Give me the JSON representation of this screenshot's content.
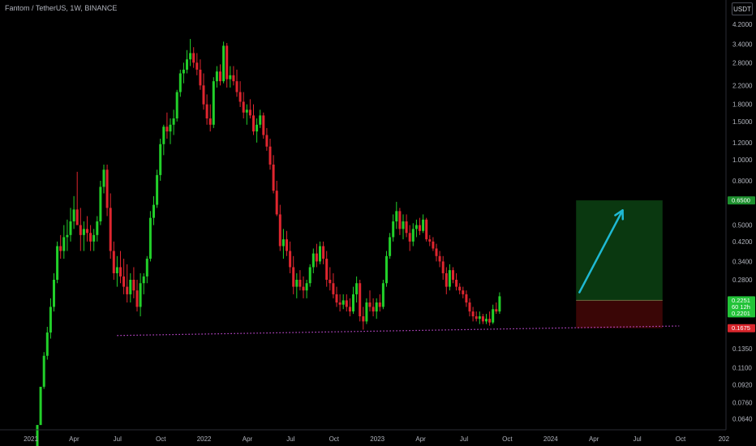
{
  "header": {
    "title": "Fantom / TetherUS, 1W, BINANCE",
    "currency": "USDT"
  },
  "colors": {
    "up": "#22d02a",
    "down": "#e0262f",
    "support": "#c44bd4",
    "arrow": "#1fb9d3",
    "target_zone": "#0a3810",
    "stop_zone": "#3a0606",
    "badge_target": "#1d8f2e",
    "badge_entry": "#22c338",
    "badge_stop": "#d9262c"
  },
  "chart_data": {
    "type": "candlestick",
    "scale": "log",
    "y_axis_ticks": [
      "4.2000",
      "3.4000",
      "2.8000",
      "2.2000",
      "1.8000",
      "1.5000",
      "1.2000",
      "1.0000",
      "0.8000",
      "0.5000",
      "0.4200",
      "0.3400",
      "0.2800",
      "0.1350",
      "0.1100",
      "0.0920",
      "0.0760",
      "0.0640"
    ],
    "x_axis_ticks": [
      "2021",
      "Apr",
      "Jul",
      "Oct",
      "2022",
      "Apr",
      "Jul",
      "Oct",
      "2023",
      "Apr",
      "Jul",
      "Oct",
      "2024",
      "Apr",
      "Jul",
      "Oct",
      "202"
    ],
    "price_badges": [
      {
        "label": "0.6500",
        "price": 0.65,
        "role": "target"
      },
      {
        "lines": [
          "0.2251",
          "60 12h",
          "0.2201"
        ],
        "price": 0.2251,
        "role": "entry"
      },
      {
        "label": "0.1675",
        "price": 0.1675,
        "role": "stop"
      }
    ],
    "position": {
      "entry": 0.2251,
      "target": 0.65,
      "stop": 0.1675,
      "start_week": 162,
      "end_week": 188
    },
    "support_line": {
      "from_week": 24,
      "from_price": 0.155,
      "to_week": 193,
      "to_price": 0.1715
    },
    "arrow": {
      "from_week": 163,
      "from_price": 0.245,
      "to_week": 176,
      "to_price": 0.585
    },
    "candles": [
      [
        0.045,
        0.06,
        0.045,
        0.06
      ],
      [
        0.06,
        0.09,
        0.06,
        0.09
      ],
      [
        0.09,
        0.13,
        0.088,
        0.125
      ],
      [
        0.125,
        0.17,
        0.12,
        0.16
      ],
      [
        0.16,
        0.23,
        0.15,
        0.21
      ],
      [
        0.21,
        0.3,
        0.2,
        0.28
      ],
      [
        0.28,
        0.42,
        0.27,
        0.4
      ],
      [
        0.4,
        0.45,
        0.35,
        0.38
      ],
      [
        0.38,
        0.5,
        0.35,
        0.44
      ],
      [
        0.44,
        0.53,
        0.38,
        0.45
      ],
      [
        0.45,
        0.6,
        0.42,
        0.52
      ],
      [
        0.52,
        0.68,
        0.48,
        0.59
      ],
      [
        0.59,
        0.88,
        0.52,
        0.5
      ],
      [
        0.5,
        0.6,
        0.38,
        0.45
      ],
      [
        0.45,
        0.52,
        0.38,
        0.48
      ],
      [
        0.48,
        0.55,
        0.42,
        0.46
      ],
      [
        0.46,
        0.5,
        0.38,
        0.42
      ],
      [
        0.42,
        0.48,
        0.38,
        0.45
      ],
      [
        0.45,
        0.55,
        0.42,
        0.52
      ],
      [
        0.52,
        0.8,
        0.5,
        0.75
      ],
      [
        0.75,
        0.95,
        0.7,
        0.9
      ],
      [
        0.9,
        0.95,
        0.55,
        0.6
      ],
      [
        0.6,
        0.7,
        0.35,
        0.38
      ],
      [
        0.38,
        0.42,
        0.28,
        0.3
      ],
      [
        0.3,
        0.36,
        0.26,
        0.32
      ],
      [
        0.32,
        0.38,
        0.27,
        0.29
      ],
      [
        0.29,
        0.35,
        0.24,
        0.26
      ],
      [
        0.26,
        0.33,
        0.22,
        0.24
      ],
      [
        0.24,
        0.3,
        0.22,
        0.28
      ],
      [
        0.28,
        0.32,
        0.23,
        0.25
      ],
      [
        0.25,
        0.28,
        0.2,
        0.21
      ],
      [
        0.21,
        0.3,
        0.19,
        0.27
      ],
      [
        0.27,
        0.3,
        0.24,
        0.29
      ],
      [
        0.29,
        0.36,
        0.27,
        0.35
      ],
      [
        0.35,
        0.58,
        0.34,
        0.54
      ],
      [
        0.54,
        0.68,
        0.5,
        0.62
      ],
      [
        0.62,
        0.9,
        0.6,
        0.85
      ],
      [
        0.85,
        1.25,
        0.8,
        1.18
      ],
      [
        1.18,
        1.45,
        1.05,
        1.42
      ],
      [
        1.42,
        1.65,
        1.25,
        1.35
      ],
      [
        1.35,
        1.55,
        1.18,
        1.45
      ],
      [
        1.45,
        1.7,
        1.3,
        1.55
      ],
      [
        1.55,
        2.1,
        1.5,
        2.05
      ],
      [
        2.05,
        2.6,
        1.95,
        2.5
      ],
      [
        2.5,
        2.8,
        2.25,
        2.6
      ],
      [
        2.6,
        3.2,
        2.5,
        2.9
      ],
      [
        2.9,
        3.6,
        2.7,
        3.1
      ],
      [
        3.1,
        3.3,
        2.65,
        2.8
      ],
      [
        2.8,
        3.1,
        2.45,
        2.6
      ],
      [
        2.6,
        2.9,
        2.1,
        2.2
      ],
      [
        2.2,
        2.5,
        1.7,
        1.8
      ],
      [
        1.8,
        2.0,
        1.45,
        1.55
      ],
      [
        1.55,
        1.8,
        1.35,
        1.45
      ],
      [
        1.45,
        2.4,
        1.4,
        2.3
      ],
      [
        2.3,
        2.7,
        2.15,
        2.55
      ],
      [
        2.55,
        2.75,
        2.2,
        2.3
      ],
      [
        2.3,
        3.5,
        2.25,
        3.35
      ],
      [
        3.35,
        3.45,
        2.15,
        2.35
      ],
      [
        2.35,
        2.7,
        2.15,
        2.45
      ],
      [
        2.45,
        2.7,
        2.2,
        2.3
      ],
      [
        2.3,
        2.6,
        1.95,
        2.05
      ],
      [
        2.05,
        2.3,
        1.75,
        1.85
      ],
      [
        1.85,
        2.05,
        1.55,
        1.65
      ],
      [
        1.65,
        1.8,
        1.45,
        1.7
      ],
      [
        1.7,
        1.9,
        1.55,
        1.6
      ],
      [
        1.6,
        1.8,
        1.3,
        1.35
      ],
      [
        1.35,
        1.55,
        1.2,
        1.45
      ],
      [
        1.45,
        1.7,
        1.4,
        1.6
      ],
      [
        1.6,
        1.65,
        1.25,
        1.3
      ],
      [
        1.3,
        1.4,
        1.1,
        1.15
      ],
      [
        1.15,
        1.25,
        0.9,
        0.95
      ],
      [
        0.95,
        1.05,
        0.7,
        0.72
      ],
      [
        0.72,
        0.8,
        0.55,
        0.56
      ],
      [
        0.56,
        0.62,
        0.38,
        0.4
      ],
      [
        0.4,
        0.48,
        0.35,
        0.43
      ],
      [
        0.43,
        0.47,
        0.36,
        0.38
      ],
      [
        0.38,
        0.42,
        0.3,
        0.32
      ],
      [
        0.32,
        0.36,
        0.24,
        0.26
      ],
      [
        0.26,
        0.3,
        0.23,
        0.28
      ],
      [
        0.28,
        0.31,
        0.25,
        0.26
      ],
      [
        0.26,
        0.29,
        0.23,
        0.25
      ],
      [
        0.25,
        0.28,
        0.23,
        0.27
      ],
      [
        0.27,
        0.33,
        0.26,
        0.32
      ],
      [
        0.32,
        0.39,
        0.3,
        0.37
      ],
      [
        0.37,
        0.41,
        0.32,
        0.34
      ],
      [
        0.34,
        0.42,
        0.33,
        0.4
      ],
      [
        0.4,
        0.42,
        0.33,
        0.35
      ],
      [
        0.35,
        0.38,
        0.26,
        0.28
      ],
      [
        0.28,
        0.32,
        0.25,
        0.27
      ],
      [
        0.27,
        0.3,
        0.23,
        0.24
      ],
      [
        0.24,
        0.26,
        0.21,
        0.22
      ],
      [
        0.22,
        0.24,
        0.2,
        0.215
      ],
      [
        0.215,
        0.24,
        0.205,
        0.225
      ],
      [
        0.225,
        0.24,
        0.2,
        0.21
      ],
      [
        0.21,
        0.23,
        0.19,
        0.2
      ],
      [
        0.2,
        0.26,
        0.195,
        0.24
      ],
      [
        0.24,
        0.29,
        0.22,
        0.27
      ],
      [
        0.27,
        0.28,
        0.18,
        0.19
      ],
      [
        0.19,
        0.21,
        0.165,
        0.18
      ],
      [
        0.18,
        0.23,
        0.175,
        0.22
      ],
      [
        0.22,
        0.25,
        0.2,
        0.21
      ],
      [
        0.21,
        0.23,
        0.19,
        0.2
      ],
      [
        0.2,
        0.23,
        0.185,
        0.22
      ],
      [
        0.22,
        0.24,
        0.2,
        0.21
      ],
      [
        0.21,
        0.28,
        0.205,
        0.27
      ],
      [
        0.27,
        0.38,
        0.26,
        0.36
      ],
      [
        0.36,
        0.46,
        0.35,
        0.44
      ],
      [
        0.44,
        0.56,
        0.42,
        0.52
      ],
      [
        0.52,
        0.64,
        0.48,
        0.58
      ],
      [
        0.58,
        0.6,
        0.45,
        0.48
      ],
      [
        0.48,
        0.56,
        0.43,
        0.52
      ],
      [
        0.52,
        0.56,
        0.44,
        0.46
      ],
      [
        0.46,
        0.5,
        0.38,
        0.42
      ],
      [
        0.42,
        0.51,
        0.4,
        0.48
      ],
      [
        0.48,
        0.53,
        0.44,
        0.5
      ],
      [
        0.5,
        0.54,
        0.45,
        0.47
      ],
      [
        0.47,
        0.56,
        0.46,
        0.53
      ],
      [
        0.53,
        0.54,
        0.42,
        0.43
      ],
      [
        0.43,
        0.45,
        0.4,
        0.42
      ],
      [
        0.42,
        0.44,
        0.38,
        0.39
      ],
      [
        0.39,
        0.41,
        0.34,
        0.36
      ],
      [
        0.36,
        0.38,
        0.32,
        0.34
      ],
      [
        0.34,
        0.36,
        0.28,
        0.3
      ],
      [
        0.3,
        0.32,
        0.24,
        0.26
      ],
      [
        0.26,
        0.33,
        0.25,
        0.31
      ],
      [
        0.31,
        0.32,
        0.27,
        0.28
      ],
      [
        0.28,
        0.3,
        0.25,
        0.26
      ],
      [
        0.26,
        0.27,
        0.24,
        0.25
      ],
      [
        0.25,
        0.26,
        0.23,
        0.24
      ],
      [
        0.24,
        0.25,
        0.21,
        0.22
      ],
      [
        0.22,
        0.23,
        0.19,
        0.2
      ],
      [
        0.2,
        0.21,
        0.18,
        0.19
      ],
      [
        0.19,
        0.2,
        0.18,
        0.185
      ],
      [
        0.185,
        0.2,
        0.175,
        0.19
      ],
      [
        0.19,
        0.195,
        0.175,
        0.18
      ],
      [
        0.18,
        0.195,
        0.175,
        0.185
      ],
      [
        0.185,
        0.2,
        0.172,
        0.178
      ],
      [
        0.178,
        0.215,
        0.175,
        0.205
      ],
      [
        0.205,
        0.22,
        0.195,
        0.2
      ],
      [
        0.2,
        0.245,
        0.195,
        0.235
      ]
    ]
  }
}
